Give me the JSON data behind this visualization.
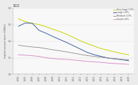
{
  "title": "SO2",
  "ylabel": "Implied emission factor (t/GWhe)",
  "years": [
    2004,
    2005,
    2006,
    2007,
    2008,
    2009,
    2010,
    2011,
    2012,
    2013,
    2014,
    2015,
    2016,
    2017,
    2018,
    2019,
    2020
  ],
  "series": [
    {
      "label": "Very large LCPs",
      "color": "#c8d400",
      "linewidth": 0.7,
      "values": [
        0.335,
        0.318,
        0.308,
        0.3,
        0.287,
        0.272,
        0.258,
        0.242,
        0.222,
        0.202,
        0.185,
        0.17,
        0.155,
        0.145,
        0.135,
        0.125,
        0.118
      ]
    },
    {
      "label": "Large LCPs",
      "color": "#3a5fa0",
      "linewidth": 0.7,
      "values": [
        0.29,
        0.31,
        0.308,
        0.265,
        0.248,
        0.228,
        0.21,
        0.192,
        0.172,
        0.152,
        0.132,
        0.118,
        0.108,
        0.098,
        0.093,
        0.088,
        0.082
      ]
    },
    {
      "label": "Medium LCPs",
      "color": "#888888",
      "linewidth": 0.6,
      "values": [
        0.175,
        0.17,
        0.165,
        0.162,
        0.155,
        0.148,
        0.142,
        0.135,
        0.128,
        0.12,
        0.113,
        0.108,
        0.103,
        0.098,
        0.095,
        0.09,
        0.087
      ]
    },
    {
      "label": "Small LCPs",
      "color": "#d080c0",
      "linewidth": 0.6,
      "values": [
        0.118,
        0.115,
        0.112,
        0.108,
        0.1,
        0.095,
        0.092,
        0.09,
        0.086,
        0.082,
        0.078,
        0.075,
        0.072,
        0.068,
        0.065,
        0.063,
        0.06
      ]
    }
  ],
  "ylim": [
    0.0,
    0.4
  ],
  "yticks": [
    0.0,
    0.1,
    0.2,
    0.3,
    0.4
  ],
  "background_color": "#ececec",
  "plot_bg": "#f8f8f8",
  "title_fontsize": 3.5,
  "label_fontsize": 2.2,
  "tick_fontsize": 2.2,
  "legend_fontsize": 2.3,
  "grid_color": "#dddddd"
}
